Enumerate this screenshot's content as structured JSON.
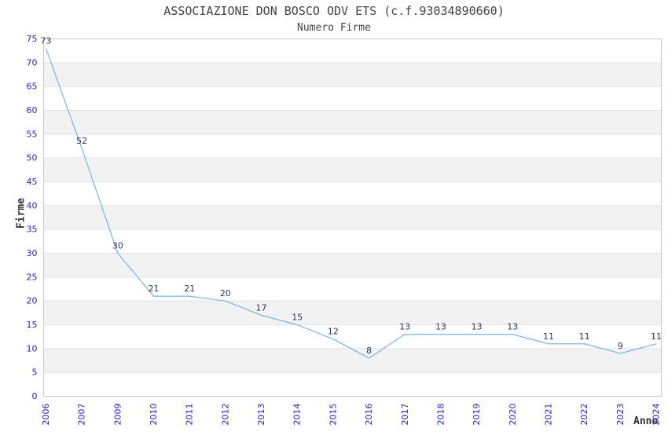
{
  "chart_data": {
    "type": "line",
    "title": "ASSOCIAZIONE DON BOSCO ODV ETS (c.f.93034890660)",
    "subtitle": "Numero Firme",
    "xlabel": "Anno",
    "ylabel": "Firme",
    "categories": [
      "2006",
      "2007",
      "2009",
      "2010",
      "2011",
      "2012",
      "2013",
      "2014",
      "2015",
      "2016",
      "2017",
      "2018",
      "2019",
      "2020",
      "2021",
      "2022",
      "2023",
      "2024"
    ],
    "series": [
      {
        "name": "Numero Firme",
        "values": [
          73,
          52,
          30,
          21,
          21,
          20,
          17,
          15,
          12,
          8,
          13,
          13,
          13,
          13,
          11,
          11,
          9,
          11
        ]
      }
    ],
    "ylim": [
      0,
      75
    ],
    "ytick_step": 5,
    "grid": true,
    "legend": "none",
    "band_pattern": "alternating horizontal stripes every 5 units",
    "x_tick_rotation": -90,
    "colors": {
      "line": "#7fb2e5",
      "tick_label": "#2424cc",
      "data_label": "#333366",
      "title": "#444444",
      "axis_label": "#333333",
      "band": "#f2f2f2",
      "gridline": "#e2e2e2",
      "spine": "#c9c9c9",
      "background": "#ffffff"
    }
  }
}
